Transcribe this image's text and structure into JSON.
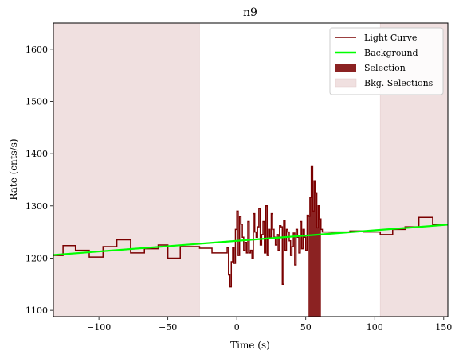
{
  "chart_data": {
    "type": "line",
    "title": "n9",
    "xlabel": "Time (s)",
    "ylabel": "Rate (cnts/s)",
    "xlim": [
      -133,
      153
    ],
    "ylim": [
      1088,
      1650
    ],
    "xticks": [
      -100,
      -50,
      0,
      50,
      100,
      150
    ],
    "yticks": [
      1100,
      1200,
      1300,
      1400,
      1500,
      1600
    ],
    "grid": false,
    "legend_position": "top-right",
    "legend": [
      {
        "label": "Light Curve",
        "kind": "line",
        "color": "#7a0000"
      },
      {
        "label": "Background",
        "kind": "line",
        "color": "#00ff00"
      },
      {
        "label": "Selection",
        "kind": "patch",
        "color": "#8b2222"
      },
      {
        "label": "Bkg. Selections",
        "kind": "patch",
        "color": "#f0e0e0"
      }
    ],
    "background_fit": {
      "x": [
        -133,
        153
      ],
      "y": [
        1206,
        1264
      ]
    },
    "selection": {
      "x0": 52,
      "x1": 61
    },
    "bkg_selections": [
      {
        "x0": -133,
        "x1": -27
      },
      {
        "x0": 104,
        "x1": 153
      }
    ],
    "light_curve": {
      "x": [
        -133,
        -126,
        -117,
        -107,
        -97,
        -87,
        -77,
        -67,
        -57,
        -50,
        -41,
        -27,
        -18,
        -7,
        -6,
        -5,
        -4,
        -3,
        -2,
        -1,
        0,
        1,
        2,
        3,
        4,
        5,
        6,
        7,
        8,
        9,
        10,
        11,
        12,
        13,
        14,
        15,
        16,
        17,
        18,
        19,
        20,
        21,
        22,
        23,
        24,
        25,
        26,
        27,
        28,
        29,
        30,
        31,
        32,
        33,
        34,
        35,
        36,
        37,
        38,
        39,
        40,
        41,
        42,
        43,
        44,
        45,
        46,
        47,
        48,
        49,
        50,
        51,
        52,
        53,
        54,
        55,
        56,
        57,
        58,
        59,
        60,
        61,
        62,
        72,
        82,
        92,
        104,
        113,
        122,
        132,
        142,
        153
      ],
      "y": [
        1205,
        1224,
        1215,
        1202,
        1222,
        1235,
        1210,
        1218,
        1225,
        1200,
        1222,
        1219,
        1210,
        1220,
        1168,
        1145,
        1193,
        1220,
        1190,
        1255,
        1290,
        1205,
        1280,
        1265,
        1240,
        1215,
        1230,
        1210,
        1270,
        1210,
        1215,
        1200,
        1285,
        1250,
        1240,
        1260,
        1295,
        1225,
        1245,
        1270,
        1210,
        1300,
        1205,
        1255,
        1240,
        1285,
        1255,
        1240,
        1225,
        1245,
        1215,
        1262,
        1260,
        1150,
        1272,
        1215,
        1255,
        1250,
        1233,
        1205,
        1222,
        1248,
        1187,
        1255,
        1240,
        1210,
        1270,
        1218,
        1255,
        1240,
        1215,
        1282,
        1280,
        1316,
        1375,
        1290,
        1348,
        1325,
        1258,
        1300,
        1275,
        1255,
        1250,
        1250,
        1252,
        1250,
        1245,
        1255,
        1260,
        1278,
        1264,
        1264
      ]
    }
  }
}
